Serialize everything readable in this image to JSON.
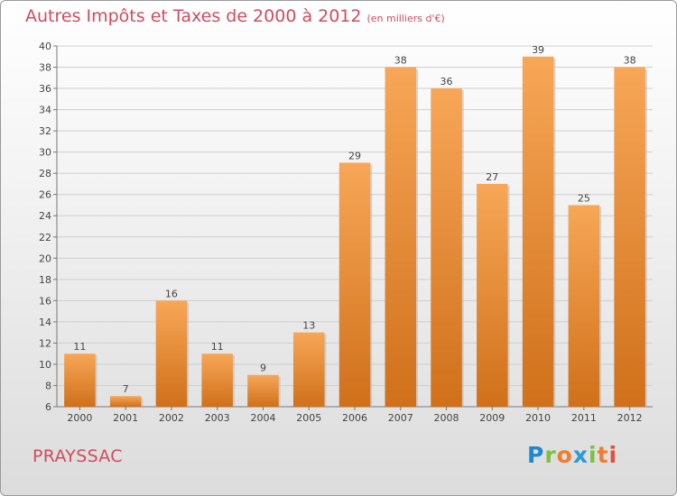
{
  "chart_data": {
    "type": "bar",
    "title": "Autres Impôts et Taxes de 2000 à 2012",
    "unit": "(en milliers d'€)",
    "categories": [
      "2000",
      "2001",
      "2002",
      "2003",
      "2004",
      "2005",
      "2006",
      "2007",
      "2008",
      "2009",
      "2010",
      "2011",
      "2012"
    ],
    "values": [
      11,
      7,
      16,
      11,
      9,
      13,
      29,
      38,
      36,
      27,
      39,
      25,
      38
    ],
    "ylim": [
      6,
      40
    ],
    "yticks": [
      6,
      8,
      10,
      12,
      14,
      16,
      18,
      20,
      22,
      24,
      26,
      28,
      30,
      32,
      34,
      36,
      38,
      40
    ],
    "grid": true,
    "bar_color": "#f08c32"
  },
  "footer": {
    "place": "PRAYSSAC",
    "brand": "Proxiti"
  }
}
